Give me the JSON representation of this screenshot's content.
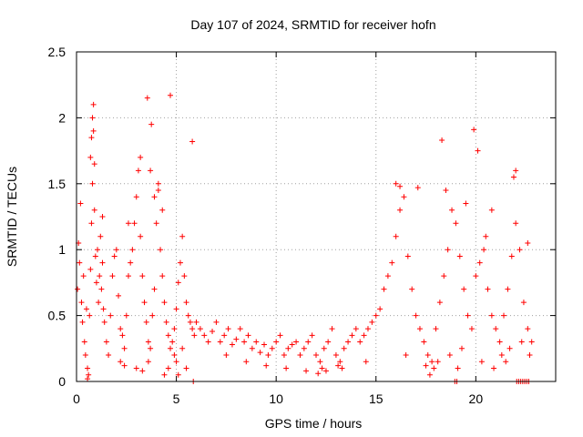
{
  "chart_data": {
    "type": "scatter",
    "title": "Day 107 of 2024, SRMTID for receiver hofn",
    "xlabel": "GPS time / hours",
    "ylabel": "SRMTID / TECUs",
    "xlim": [
      0,
      24
    ],
    "ylim": [
      0,
      2.5
    ],
    "xticks": [
      0,
      5,
      10,
      15,
      20
    ],
    "xtick_labels": [
      "0",
      "5",
      "10",
      "15",
      "20"
    ],
    "yticks": [
      0,
      0.5,
      1,
      1.5,
      2,
      2.5
    ],
    "ytick_labels": [
      "0",
      "0.5",
      "1",
      "1.5",
      "2",
      "2.5"
    ],
    "grid": true,
    "marker": "+",
    "color": "#ff0000",
    "series": [
      {
        "name": "SRMTID",
        "x": [
          0.05,
          0.1,
          0.15,
          0.2,
          0.25,
          0.3,
          0.35,
          0.4,
          0.45,
          0.5,
          0.55,
          0.6,
          0.65,
          0.7,
          0.75,
          0.8,
          0.85,
          0.9,
          0.95,
          1.0,
          1.05,
          1.1,
          1.15,
          1.2,
          1.25,
          1.3,
          1.35,
          1.4,
          1.5,
          1.6,
          1.7,
          1.8,
          1.9,
          2.0,
          2.1,
          2.2,
          2.3,
          2.4,
          2.5,
          2.6,
          2.7,
          2.8,
          2.9,
          3.0,
          3.1,
          3.2,
          3.3,
          3.4,
          3.5,
          3.6,
          3.7,
          3.8,
          3.9,
          4.0,
          4.1,
          4.2,
          4.3,
          4.4,
          4.5,
          4.6,
          4.7,
          4.8,
          4.9,
          5.0,
          5.1,
          5.2,
          5.3,
          5.4,
          5.5,
          5.6,
          5.7,
          5.8,
          5.9,
          6.0,
          6.2,
          6.4,
          6.6,
          6.8,
          7.0,
          7.2,
          7.4,
          7.6,
          7.8,
          8.0,
          8.2,
          8.4,
          8.6,
          8.8,
          9.0,
          9.2,
          9.4,
          9.6,
          9.8,
          10.0,
          10.2,
          10.4,
          10.6,
          10.8,
          11.0,
          11.2,
          11.4,
          11.6,
          11.8,
          12.0,
          12.2,
          12.4,
          12.6,
          12.8,
          13.0,
          13.2,
          13.4,
          13.6,
          13.8,
          14.0,
          14.2,
          14.4,
          14.6,
          14.8,
          15.0,
          15.2,
          15.4,
          15.6,
          15.8,
          16.0,
          16.2,
          16.4,
          16.6,
          16.8,
          17.0,
          17.2,
          17.4,
          17.6,
          17.8,
          18.0,
          18.2,
          18.4,
          18.6,
          18.8,
          19.0,
          19.2,
          19.4,
          19.6,
          19.8,
          20.0,
          20.2,
          20.4,
          20.6,
          20.8,
          21.0,
          21.2,
          21.4,
          21.6,
          21.8,
          22.0,
          22.2,
          22.4,
          22.6,
          22.8,
          0.7,
          0.75,
          0.8,
          0.85,
          0.9,
          3.55,
          3.7,
          3.75,
          4.7,
          5.8,
          18.3,
          19.9,
          20.1,
          20.5,
          4.1,
          4.3,
          1.3,
          2.6,
          3.2,
          3.9,
          16.0,
          16.2,
          17.1,
          18.5,
          19.5,
          20.8,
          21.9,
          22.0,
          22.6,
          0.55,
          5.85,
          18.95,
          19.05,
          22.05,
          22.15,
          22.25,
          22.35,
          22.45,
          22.55,
          22.65,
          2.2,
          2.4,
          3.0,
          3.3,
          3.6,
          4.4,
          4.6,
          4.9,
          5.0,
          5.1,
          5.3,
          5.5,
          7.5,
          8.5,
          9.5,
          10.5,
          11.5,
          12.1,
          12.3,
          12.5,
          13.1,
          13.3,
          14.5,
          16.5,
          17.5,
          17.7,
          17.9,
          18.1,
          18.7,
          19.1,
          19.3,
          20.3,
          20.9,
          21.3,
          21.5,
          21.7,
          22.3,
          22.7
        ],
        "y": [
          0.7,
          1.05,
          0.9,
          1.35,
          0.6,
          0.45,
          0.8,
          0.3,
          0.2,
          0.55,
          0.1,
          0.05,
          0.5,
          0.85,
          1.2,
          1.5,
          1.9,
          1.3,
          0.95,
          0.75,
          1.0,
          0.6,
          0.8,
          1.1,
          0.7,
          0.9,
          0.55,
          0.45,
          0.3,
          0.2,
          0.5,
          0.8,
          0.95,
          1.0,
          0.65,
          0.4,
          0.35,
          0.25,
          0.5,
          0.8,
          0.9,
          1.0,
          1.2,
          1.4,
          1.6,
          1.1,
          0.8,
          0.6,
          0.45,
          0.3,
          0.25,
          0.5,
          0.7,
          1.2,
          1.45,
          1.0,
          0.8,
          0.6,
          0.45,
          0.35,
          0.25,
          0.3,
          0.4,
          0.55,
          0.75,
          0.9,
          1.1,
          0.8,
          0.6,
          0.5,
          0.45,
          0.4,
          0.35,
          0.45,
          0.4,
          0.35,
          0.3,
          0.38,
          0.45,
          0.3,
          0.35,
          0.4,
          0.28,
          0.32,
          0.4,
          0.3,
          0.35,
          0.25,
          0.3,
          0.22,
          0.28,
          0.2,
          0.25,
          0.3,
          0.35,
          0.2,
          0.25,
          0.28,
          0.3,
          0.2,
          0.25,
          0.3,
          0.35,
          0.2,
          0.15,
          0.25,
          0.3,
          0.4,
          0.2,
          0.15,
          0.25,
          0.3,
          0.35,
          0.4,
          0.3,
          0.35,
          0.4,
          0.45,
          0.5,
          0.55,
          0.7,
          0.8,
          0.9,
          1.1,
          1.3,
          1.4,
          0.95,
          0.7,
          0.5,
          0.4,
          0.3,
          0.2,
          0.15,
          0.4,
          0.6,
          0.8,
          1.0,
          1.3,
          1.2,
          0.95,
          0.7,
          0.5,
          0.4,
          0.8,
          0.9,
          1.0,
          0.7,
          0.5,
          0.4,
          0.3,
          0.5,
          0.7,
          0.95,
          1.2,
          1.0,
          0.6,
          0.4,
          0.3,
          1.7,
          1.85,
          2.0,
          2.1,
          1.65,
          2.15,
          1.6,
          1.95,
          2.17,
          1.82,
          1.83,
          1.91,
          1.75,
          1.1,
          1.5,
          1.3,
          1.25,
          1.2,
          1.7,
          1.4,
          1.5,
          1.48,
          1.47,
          1.45,
          1.35,
          1.3,
          1.55,
          1.6,
          1.05,
          0.02,
          0.0,
          0.0,
          0.0,
          0.0,
          0.0,
          0.0,
          0.0,
          0.0,
          0.0,
          0.0,
          0.15,
          0.12,
          0.1,
          0.08,
          0.15,
          0.05,
          0.1,
          0.2,
          0.15,
          0.05,
          0.25,
          0.1,
          0.2,
          0.15,
          0.12,
          0.1,
          0.08,
          0.06,
          0.1,
          0.08,
          0.12,
          0.1,
          0.15,
          0.2,
          0.12,
          0.05,
          0.1,
          0.15,
          0.2,
          0.1,
          0.25,
          0.15,
          0.1,
          0.2,
          0.15,
          0.25,
          0.3,
          0.2
        ]
      }
    ]
  }
}
